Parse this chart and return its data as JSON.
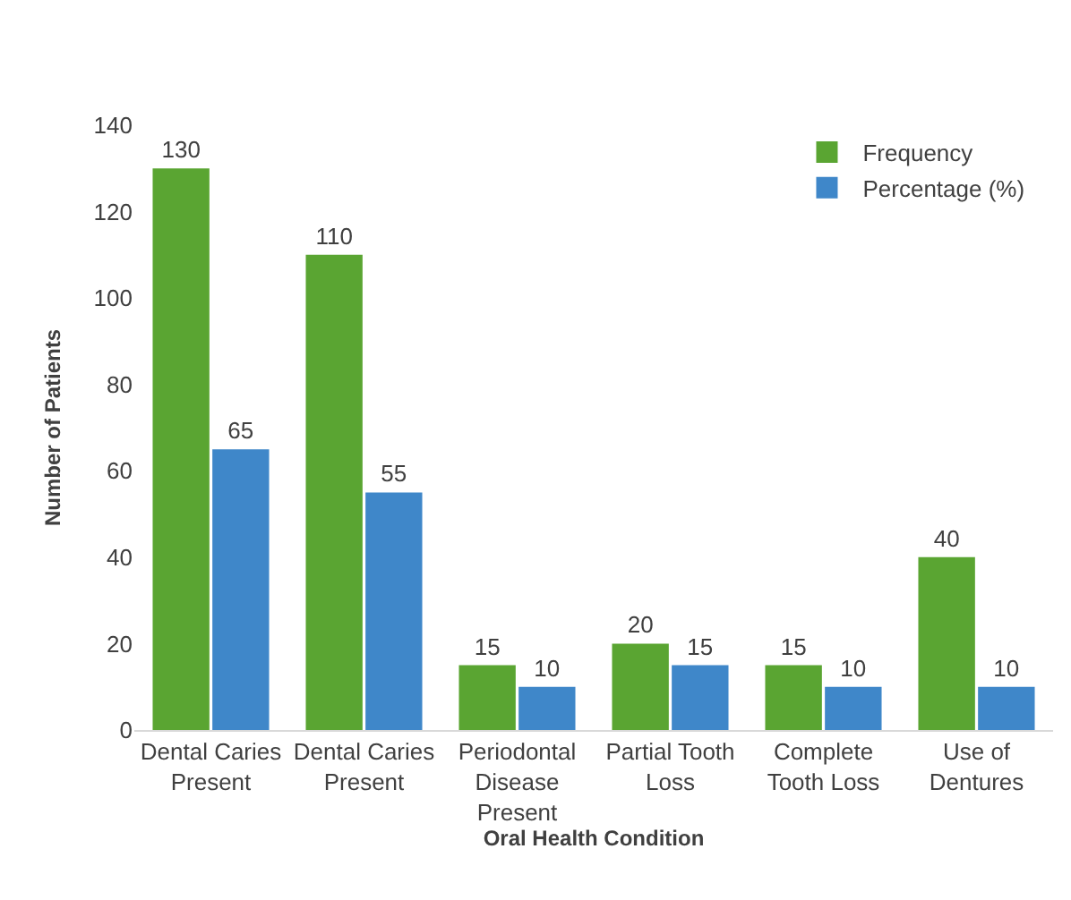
{
  "chart_data": {
    "type": "bar",
    "xlabel": "Oral Health Condition",
    "ylabel": "Number of Patients",
    "categories": [
      "Dental Caries Present",
      "Dental Caries Present",
      "Periodontal Disease Present",
      "Partial Tooth Loss",
      "Complete Tooth Loss",
      "Use of Dentures"
    ],
    "series": [
      {
        "name": "Frequency",
        "color": "#5aa532",
        "values": [
          130,
          110,
          15,
          20,
          15,
          40
        ]
      },
      {
        "name": "Percentage (%)",
        "color": "#3f87c9",
        "values": [
          65,
          55,
          10,
          15,
          10,
          10
        ]
      }
    ],
    "ylim": [
      0,
      140
    ],
    "yticks": [
      0,
      20,
      40,
      60,
      80,
      100,
      120,
      140
    ],
    "data_labels": true,
    "grid": false,
    "legend": "top right"
  }
}
